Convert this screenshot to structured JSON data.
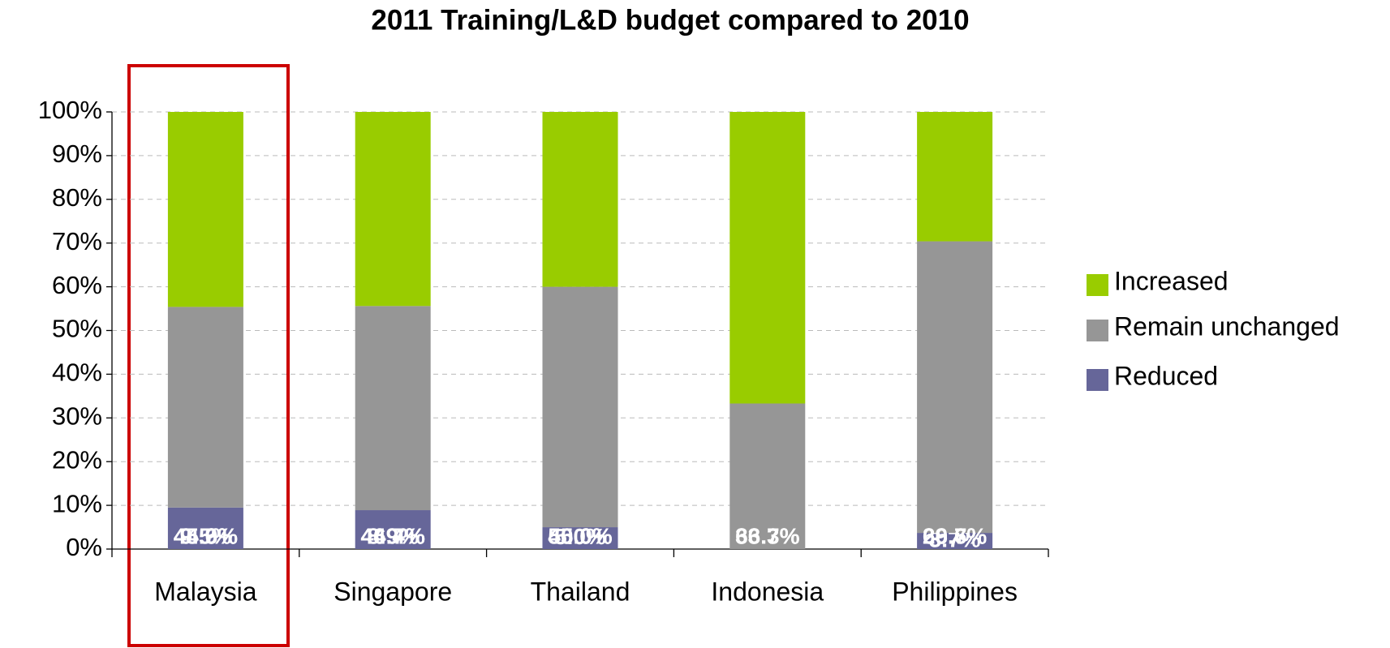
{
  "chart_data": {
    "type": "stacked_bar",
    "title": "2011 Training/L&D budget compared to 2010",
    "categories": [
      "Malaysia",
      "Singapore",
      "Thailand",
      "Indonesia",
      "Philippines"
    ],
    "series": [
      {
        "name": "Reduced",
        "color": "#666699",
        "values": [
          9.5,
          8.9,
          5.0,
          null,
          3.7
        ],
        "value_labels": [
          "9.5%",
          "8.9%",
          "5.0%",
          null,
          "3.7%"
        ]
      },
      {
        "name": "Remain unchanged",
        "color": "#969696",
        "values": [
          45.9,
          46.7,
          55.0,
          33.3,
          66.7
        ],
        "value_labels": [
          "45.9%",
          "46.7%",
          "55.0%",
          "33.3%",
          "66.7%"
        ]
      },
      {
        "name": "Increased",
        "color": "#99cc00",
        "values": [
          44.6,
          44.4,
          40.0,
          66.7,
          29.6
        ],
        "value_labels": [
          "44.6%",
          "44.4%",
          "40.0%",
          "66.7%",
          "29.6%"
        ]
      }
    ],
    "ylim": [
      0,
      100
    ],
    "yticks": [
      {
        "value": 0,
        "label": "0%"
      },
      {
        "value": 10,
        "label": "10%"
      },
      {
        "value": 20,
        "label": "20%"
      },
      {
        "value": 30,
        "label": "30%"
      },
      {
        "value": 40,
        "label": "40%"
      },
      {
        "value": 50,
        "label": "50%"
      },
      {
        "value": 60,
        "label": "60%"
      },
      {
        "value": 70,
        "label": "70%"
      },
      {
        "value": 80,
        "label": "80%"
      },
      {
        "value": 90,
        "label": "90%"
      },
      {
        "value": 100,
        "label": "100%"
      }
    ],
    "grid": true,
    "legend": "right"
  }
}
